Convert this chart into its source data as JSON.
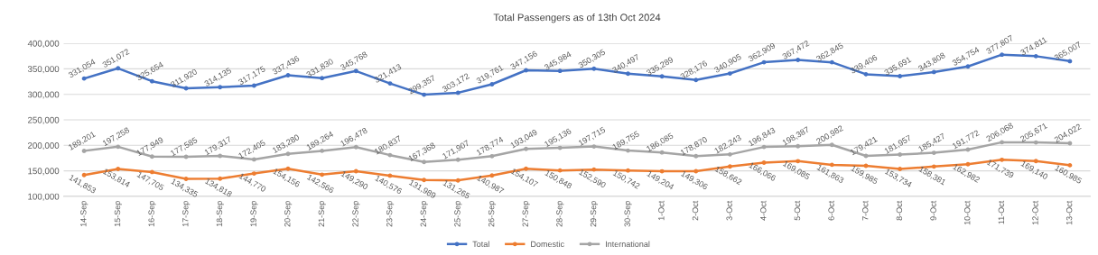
{
  "chart_data": {
    "type": "line",
    "title": "Total Passengers as of 13th Oct 2024",
    "categories": [
      "14-Sep",
      "15-Sep",
      "16-Sep",
      "17-Sep",
      "18-Sep",
      "19-Sep",
      "20-Sep",
      "21-Sep",
      "22-Sep",
      "23-Sep",
      "24-Sep",
      "25-Sep",
      "26-Sep",
      "27-Sep",
      "28-Sep",
      "29-Sep",
      "30-Sep",
      "1-Oct",
      "2-Oct",
      "3-Oct",
      "4-Oct",
      "5-Oct",
      "6-Oct",
      "7-Oct",
      "8-Oct",
      "9-Oct",
      "10-Oct",
      "11-Oct",
      "12-Oct",
      "13-Oct"
    ],
    "series": [
      {
        "name": "Total",
        "color": "#4472c4",
        "values": [
          331054,
          351072,
          325654,
          311920,
          314135,
          317175,
          337436,
          331830,
          345768,
          321413,
          299357,
          303172,
          319761,
          347156,
          345984,
          350305,
          340497,
          335289,
          328176,
          340905,
          362909,
          367472,
          362845,
          339406,
          335691,
          343808,
          354754,
          377807,
          374811,
          365007
        ],
        "value_labels": [
          "331,054",
          "351,072",
          "325,654",
          "311,920",
          "314,135",
          "317,175",
          "337,436",
          "331,830",
          "345,768",
          "321,413",
          "299,357",
          "303,172",
          "319,761",
          "347,156",
          "345,984",
          "350,305",
          "340,497",
          "335,289",
          "328,176",
          "340,905",
          "362,909",
          "367,472",
          "362,845",
          "339,406",
          "335,691",
          "343,808",
          "354,754",
          "377,807",
          "374,811",
          "365,007"
        ]
      },
      {
        "name": "Domestic",
        "color": "#ed7d31",
        "values": [
          141853,
          153814,
          147705,
          134335,
          134818,
          144770,
          154156,
          142566,
          149290,
          140576,
          131989,
          131265,
          140987,
          154107,
          150848,
          152590,
          150742,
          149204,
          149306,
          158662,
          166066,
          169085,
          161863,
          159985,
          153734,
          158381,
          162982,
          171739,
          169140,
          160985
        ],
        "value_labels": [
          "141,853",
          "153,814",
          "147,705",
          "134,335",
          "134,818",
          "144,770",
          "154,156",
          "142,566",
          "149,290",
          "140,576",
          "131,989",
          "131,265",
          "140,987",
          "154,107",
          "150,848",
          "152,590",
          "150,742",
          "149,204",
          "149,306",
          "158,662",
          "166,066",
          "169,085",
          "161,863",
          "159,985",
          "153,734",
          "158,381",
          "162,982",
          "171,739",
          "169,140",
          "160,985"
        ]
      },
      {
        "name": "International",
        "color": "#a5a5a5",
        "values": [
          189201,
          197258,
          177949,
          177585,
          179317,
          172405,
          183280,
          189264,
          196478,
          180837,
          167368,
          171907,
          178774,
          193049,
          195136,
          197715,
          189755,
          186085,
          178870,
          182243,
          196843,
          198387,
          200982,
          179421,
          181957,
          185427,
          191772,
          206068,
          205671,
          204022
        ],
        "value_labels": [
          "189,201",
          "197,258",
          "177,949",
          "177,585",
          "179,317",
          "172,405",
          "183,280",
          "189,264",
          "196,478",
          "180,837",
          "167,368",
          "171,907",
          "178,774",
          "193,049",
          "195,136",
          "197,715",
          "189,755",
          "186,085",
          "178,870",
          "182,243",
          "196,843",
          "198,387",
          "200,982",
          "179,421",
          "181,957",
          "185,427",
          "191,772",
          "206,068",
          "205,671",
          "204,022"
        ]
      }
    ],
    "ylim": [
      100000,
      400000
    ],
    "yticks": [
      {
        "value": 100000,
        "label": "100,000"
      },
      {
        "value": 150000,
        "label": "150,000"
      },
      {
        "value": 200000,
        "label": "200,000"
      },
      {
        "value": 250000,
        "label": "250,000"
      },
      {
        "value": 300000,
        "label": "300,000"
      },
      {
        "value": 350000,
        "label": "350,000"
      },
      {
        "value": 400000,
        "label": "400,000"
      }
    ],
    "grid": "y",
    "legend": "bottom",
    "marker": "circle",
    "line_style": "solid"
  }
}
